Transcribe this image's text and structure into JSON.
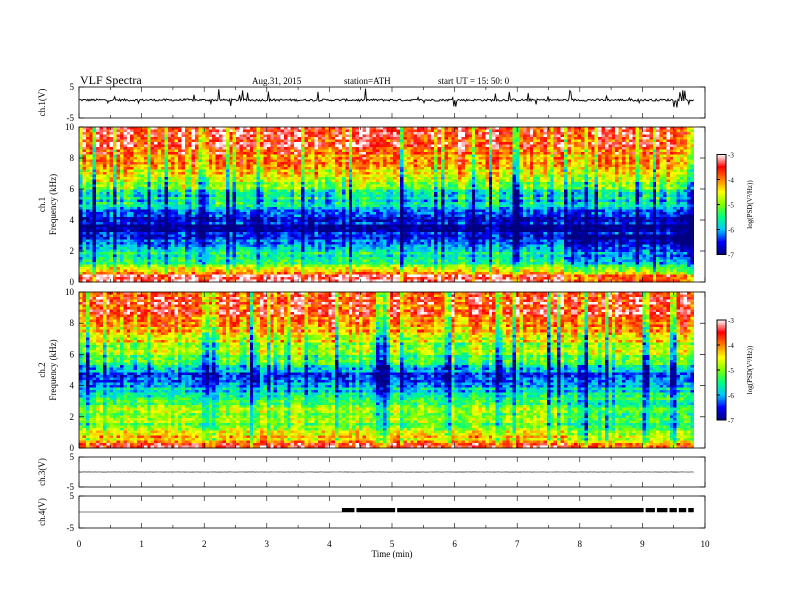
{
  "header": {
    "title": "VLF  Spectra",
    "date": "Aug.31, 2015",
    "station": "station=ATH",
    "start": "start  UT  =    15: 50: 0"
  },
  "chart_data": {
    "type": "heatmap",
    "x_range": [
      0,
      10
    ],
    "xlabel": "Time  (min)",
    "x_ticks": [
      "0",
      "1",
      "2",
      "3",
      "4",
      "5",
      "6",
      "7",
      "8",
      "9",
      "10"
    ],
    "data_end_min": 9.82,
    "panels": [
      {
        "id": "ch1_wave",
        "type": "line",
        "ylabel": "ch.1(V)",
        "ylim": [
          -5,
          5
        ],
        "y_ticks": [
          "5",
          "-5"
        ],
        "mean": 0.8,
        "noise": 0.35,
        "spikes": true
      },
      {
        "id": "ch1_spec",
        "type": "heatmap",
        "ylabel": "ch.1",
        "ylabel2": "Frequency  (kHz)",
        "ylim": [
          0,
          10
        ],
        "y_ticks": [
          "0",
          "2",
          "4",
          "6",
          "8",
          "10"
        ],
        "psd_profile": [
          [
            0.0,
            -3.0
          ],
          [
            0.5,
            -3.6
          ],
          [
            1.0,
            -5.2
          ],
          [
            1.5,
            -5.4
          ],
          [
            2.0,
            -5.6
          ],
          [
            2.5,
            -6.0
          ],
          [
            3.0,
            -6.6
          ],
          [
            3.5,
            -6.8
          ],
          [
            4.0,
            -6.7
          ],
          [
            4.5,
            -6.4
          ],
          [
            5.0,
            -5.9
          ],
          [
            5.5,
            -5.6
          ],
          [
            6.0,
            -5.2
          ],
          [
            6.5,
            -4.9
          ],
          [
            7.0,
            -4.6
          ],
          [
            7.5,
            -4.3
          ],
          [
            8.0,
            -4.1
          ],
          [
            8.5,
            -3.8
          ],
          [
            9.0,
            -3.6
          ],
          [
            9.5,
            -3.6
          ],
          [
            10.0,
            -3.7
          ]
        ],
        "change_at_min": 7.8
      },
      {
        "id": "ch2_spec",
        "type": "heatmap",
        "ylabel": "ch.2",
        "ylabel2": "Frequency  (kHz)",
        "ylim": [
          0,
          10
        ],
        "y_ticks": [
          "0",
          "2",
          "4",
          "6",
          "8",
          "10"
        ],
        "psd_profile": [
          [
            0.0,
            -3.2
          ],
          [
            0.5,
            -4.2
          ],
          [
            1.0,
            -4.6
          ],
          [
            1.5,
            -5.0
          ],
          [
            2.0,
            -5.1
          ],
          [
            2.5,
            -5.0
          ],
          [
            3.0,
            -5.4
          ],
          [
            3.5,
            -5.6
          ],
          [
            4.0,
            -6.2
          ],
          [
            4.5,
            -6.6
          ],
          [
            5.0,
            -6.0
          ],
          [
            5.5,
            -5.6
          ],
          [
            6.0,
            -5.2
          ],
          [
            6.5,
            -4.9
          ],
          [
            7.0,
            -4.6
          ],
          [
            7.5,
            -4.3
          ],
          [
            8.0,
            -4.1
          ],
          [
            8.5,
            -3.8
          ],
          [
            9.0,
            -3.6
          ],
          [
            9.5,
            -3.6
          ],
          [
            10.0,
            -3.7
          ]
        ],
        "change_at_min": 7.8
      },
      {
        "id": "ch3_wave",
        "type": "line",
        "ylabel": "ch.3(V)",
        "ylim": [
          -5,
          5
        ],
        "y_ticks": [
          "5",
          "-5"
        ],
        "mean": 0,
        "noise": 0.05,
        "spikes": false
      },
      {
        "id": "ch4_wave",
        "type": "line",
        "ylabel": "ch.4(V)",
        "ylim": [
          -5,
          5
        ],
        "y_ticks": [
          "5",
          "-5"
        ],
        "mean": 0,
        "noise": 0.0,
        "spikes": false,
        "pulse_start_min": 4.2,
        "pulse_level": 0.5
      }
    ],
    "colorbar": {
      "label": "log(PSD(V²/Hz))",
      "range": [
        -7,
        -3
      ],
      "ticks": [
        "-3",
        "-4",
        "-5",
        "-6",
        "-7"
      ],
      "colors": [
        "#000080",
        "#0000ff",
        "#00c8ff",
        "#00ff80",
        "#80ff00",
        "#ffff00",
        "#ff8000",
        "#ff0000",
        "#ffffff"
      ]
    }
  }
}
